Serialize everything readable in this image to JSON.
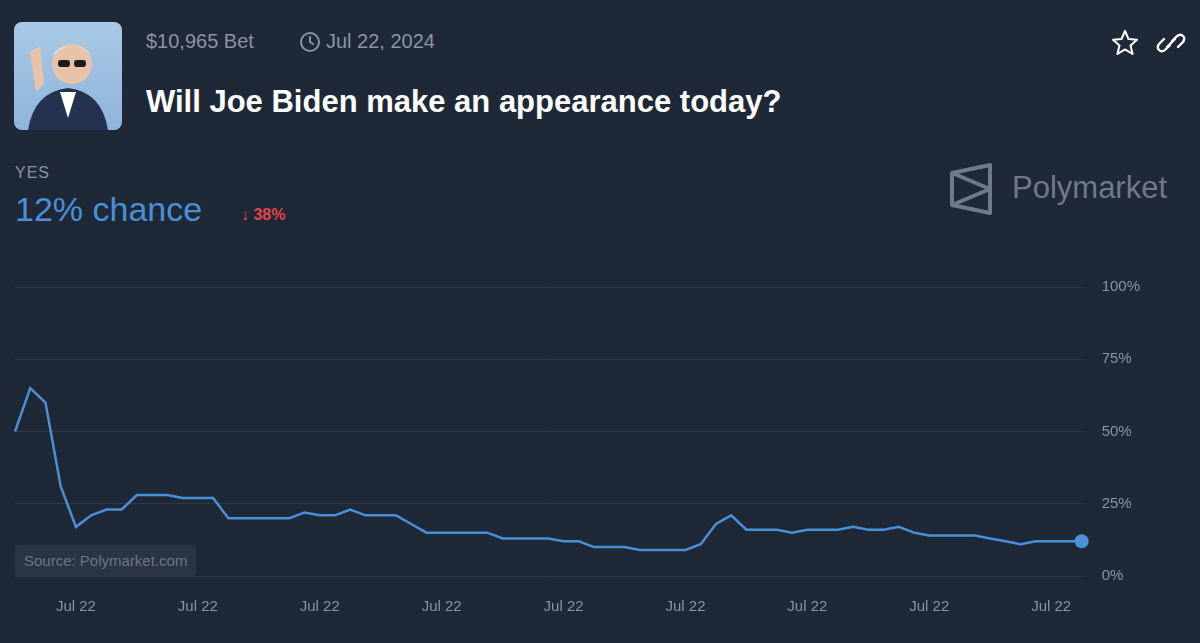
{
  "header": {
    "bet_volume": "$10,965 Bet",
    "date": "Jul 22, 2024",
    "title": "Will Joe Biden make an appearance today?",
    "outcome": "YES",
    "probability": "12% chance",
    "change": "↓ 38%",
    "brand": "Polymarket"
  },
  "chart_data": {
    "type": "line",
    "color": "#4a90d9",
    "marker": "circle",
    "grid": true,
    "source": "Source: Polymarket.com",
    "categories": [
      null,
      null,
      null,
      null,
      "Jul 22",
      null,
      null,
      null,
      null,
      null,
      null,
      null,
      "Jul 22",
      null,
      null,
      null,
      null,
      null,
      null,
      null,
      "Jul 22",
      null,
      null,
      null,
      null,
      null,
      null,
      null,
      "Jul 22",
      null,
      null,
      null,
      null,
      null,
      null,
      null,
      "Jul 22",
      null,
      null,
      null,
      null,
      null,
      null,
      null,
      "Jul 22",
      null,
      null,
      null,
      null,
      null,
      null,
      null,
      "Jul 22",
      null,
      null,
      null,
      null,
      null,
      null,
      null,
      "Jul 22",
      null,
      null,
      null,
      null,
      null,
      null,
      null,
      "Jul 22",
      null,
      null
    ],
    "values": [
      50,
      65,
      60,
      31,
      17,
      21,
      23,
      23,
      28,
      28,
      28,
      27,
      27,
      27,
      20,
      20,
      20,
      20,
      20,
      22,
      21,
      21,
      23,
      21,
      21,
      21,
      18,
      15,
      15,
      15,
      15,
      15,
      13,
      13,
      13,
      13,
      12,
      12,
      10,
      10,
      10,
      9,
      9,
      9,
      9,
      11,
      18,
      21,
      16,
      16,
      16,
      15,
      16,
      16,
      16,
      17,
      16,
      16,
      17,
      15,
      14,
      14,
      14,
      14,
      13,
      12,
      11,
      12,
      12,
      12,
      12
    ],
    "ylim": [
      0,
      100
    ],
    "yticks": [
      {
        "value": 0,
        "label": "0%"
      },
      {
        "value": 25,
        "label": "25%"
      },
      {
        "value": 50,
        "label": "50%"
      },
      {
        "value": 75,
        "label": "75%"
      },
      {
        "value": 100,
        "label": "100%"
      }
    ]
  }
}
